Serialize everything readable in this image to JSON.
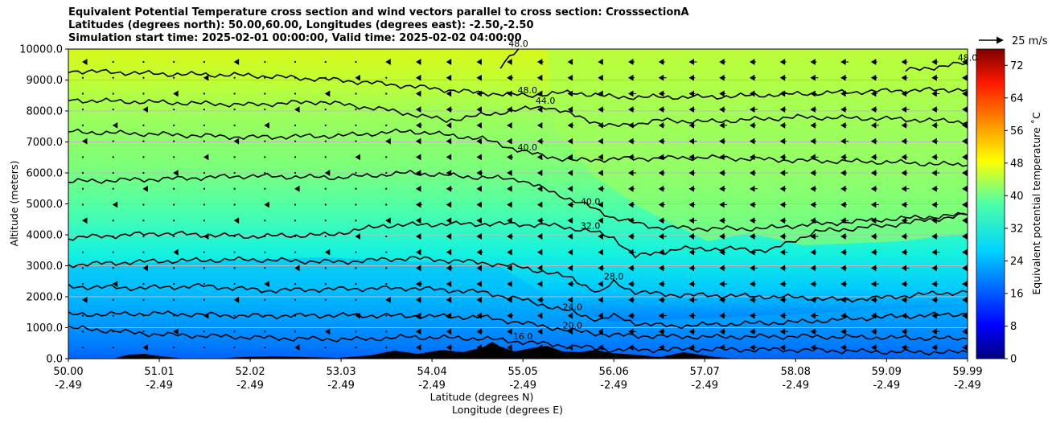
{
  "chart_data": {
    "type": "heatmap",
    "title_lines": [
      "Equivalent Potential Temperature cross section and wind vectors parallel to cross section: CrosssectionA",
      "Latitudes (degrees north): 50.00,60.00, Longitudes (degrees east): -2.50,-2.50",
      "Simulation start time: 2025-02-01 00:00:00, Valid time: 2025-02-02 04:00:00"
    ],
    "xlabel": "Latitude (degrees N)",
    "xlabel2": "Longitude (degrees E)",
    "ylabel": "Altitude (meters)",
    "xlim": [
      50.0,
      59.99
    ],
    "ylim": [
      0,
      10000
    ],
    "x_ticks": [
      {
        "lat": "50.00",
        "lon": "-2.49",
        "value": 50.0
      },
      {
        "lat": "51.01",
        "lon": "-2.49",
        "value": 51.01
      },
      {
        "lat": "52.02",
        "lon": "-2.49",
        "value": 52.02
      },
      {
        "lat": "53.03",
        "lon": "-2.49",
        "value": 53.03
      },
      {
        "lat": "54.04",
        "lon": "-2.49",
        "value": 54.04
      },
      {
        "lat": "55.05",
        "lon": "-2.49",
        "value": 55.05
      },
      {
        "lat": "56.06",
        "lon": "-2.49",
        "value": 56.06
      },
      {
        "lat": "57.07",
        "lon": "-2.49",
        "value": 57.07
      },
      {
        "lat": "58.08",
        "lon": "-2.49",
        "value": 58.08
      },
      {
        "lat": "59.09",
        "lon": "-2.49",
        "value": 59.09
      },
      {
        "lat": "59.99",
        "lon": "-2.49",
        "value": 59.99
      }
    ],
    "y_ticks": [
      {
        "label": "0.0",
        "value": 0
      },
      {
        "label": "1000.0",
        "value": 1000
      },
      {
        "label": "2000.0",
        "value": 2000
      },
      {
        "label": "3000.0",
        "value": 3000
      },
      {
        "label": "4000.0",
        "value": 4000
      },
      {
        "label": "5000.0",
        "value": 5000
      },
      {
        "label": "6000.0",
        "value": 6000
      },
      {
        "label": "7000.0",
        "value": 7000
      },
      {
        "label": "8000.0",
        "value": 8000
      },
      {
        "label": "9000.0",
        "value": 9000
      },
      {
        "label": "10000.0",
        "value": 10000
      }
    ],
    "grid": "horizontal",
    "colorbar": {
      "label": "Equivalent potential temperature ˚C",
      "range": [
        0,
        76
      ],
      "ticks": [
        "0",
        "8",
        "16",
        "24",
        "32",
        "40",
        "48",
        "56",
        "64",
        "72"
      ],
      "tick_values": [
        0,
        8,
        16,
        24,
        32,
        40,
        48,
        56,
        64,
        72
      ],
      "colormap": "jet"
    },
    "quiver_key": {
      "label": "25 m/s",
      "value": 25
    },
    "contours": [
      {
        "level": "16.0",
        "value": 16,
        "points": [
          [
            50.0,
            1000
          ],
          [
            51.0,
            780
          ],
          [
            52.5,
            650
          ],
          [
            53.2,
            620
          ],
          [
            53.8,
            700
          ],
          [
            54.6,
            650
          ],
          [
            55.05,
            540
          ],
          [
            55.6,
            400
          ],
          [
            56.06,
            280
          ],
          [
            57.1,
            300
          ],
          [
            58.1,
            280
          ],
          [
            59.09,
            220
          ],
          [
            59.99,
            200
          ]
        ]
      },
      {
        "level": "20.0",
        "value": 20,
        "points": [
          [
            50.0,
            1420
          ],
          [
            51.0,
            1460
          ],
          [
            52.0,
            1380
          ],
          [
            53.0,
            1400
          ],
          [
            53.8,
            1380
          ],
          [
            54.6,
            1340
          ],
          [
            55.05,
            1150
          ],
          [
            55.6,
            900
          ],
          [
            56.06,
            760
          ],
          [
            56.6,
            720
          ],
          [
            57.1,
            700
          ],
          [
            58.1,
            720
          ],
          [
            59.09,
            680
          ],
          [
            59.99,
            640
          ]
        ]
      },
      {
        "level": "24.0",
        "value": 24,
        "points": [
          [
            50.0,
            2330
          ],
          [
            50.8,
            2280
          ],
          [
            51.5,
            2350
          ],
          [
            52.2,
            2200
          ],
          [
            53.0,
            2250
          ],
          [
            53.8,
            2280
          ],
          [
            54.6,
            2150
          ],
          [
            55.05,
            1900
          ],
          [
            55.6,
            1500
          ],
          [
            55.9,
            1250
          ],
          [
            56.06,
            1380
          ],
          [
            56.3,
            1150
          ],
          [
            56.7,
            1050
          ],
          [
            57.1,
            1100
          ],
          [
            58.1,
            1180
          ],
          [
            59.09,
            1350
          ],
          [
            59.99,
            1450
          ]
        ]
      },
      {
        "level": "28.0",
        "value": 28,
        "points": [
          [
            50.0,
            3030
          ],
          [
            51.0,
            3150
          ],
          [
            52.0,
            3200
          ],
          [
            53.0,
            3120
          ],
          [
            53.8,
            3250
          ],
          [
            54.6,
            3100
          ],
          [
            55.05,
            2950
          ],
          [
            55.6,
            2600
          ],
          [
            55.9,
            2100
          ],
          [
            56.06,
            2480
          ],
          [
            56.3,
            2150
          ],
          [
            56.8,
            2050
          ],
          [
            57.1,
            2050
          ],
          [
            58.1,
            1980
          ],
          [
            58.6,
            1900
          ],
          [
            59.09,
            1980
          ],
          [
            59.6,
            2100
          ],
          [
            59.99,
            2150
          ]
        ]
      },
      {
        "level": "32.0",
        "value": 32,
        "points": [
          [
            50.0,
            3900
          ],
          [
            51.0,
            4050
          ],
          [
            52.0,
            3950
          ],
          [
            52.9,
            4000
          ],
          [
            53.5,
            4300
          ],
          [
            54.2,
            4350
          ],
          [
            54.9,
            4350
          ],
          [
            55.4,
            4300
          ],
          [
            55.8,
            4120
          ],
          [
            56.06,
            3900
          ],
          [
            56.3,
            3300
          ],
          [
            56.8,
            3550
          ],
          [
            57.3,
            3550
          ],
          [
            57.8,
            3500
          ],
          [
            58.3,
            4100
          ],
          [
            59.09,
            4300
          ],
          [
            59.99,
            4650
          ]
        ]
      },
      {
        "level": "40.0",
        "value": 40,
        "points": [
          [
            50.0,
            5720
          ],
          [
            51.0,
            5800
          ],
          [
            52.0,
            5900
          ],
          [
            53.0,
            5850
          ],
          [
            53.8,
            6000
          ],
          [
            54.6,
            5850
          ],
          [
            55.0,
            5800
          ],
          [
            55.4,
            5350
          ],
          [
            55.8,
            4900
          ],
          [
            56.06,
            4550
          ],
          [
            56.5,
            4250
          ],
          [
            57.1,
            4200
          ],
          [
            57.7,
            4200
          ],
          [
            58.1,
            4300
          ],
          [
            59.09,
            4500
          ],
          [
            59.99,
            4650
          ]
        ]
      },
      {
        "level": "40.0",
        "value": 40,
        "points": [
          [
            50.0,
            7330
          ],
          [
            51.0,
            7250
          ],
          [
            52.0,
            7150
          ],
          [
            53.0,
            7200
          ],
          [
            53.8,
            7350
          ],
          [
            54.6,
            7100
          ],
          [
            55.1,
            6650
          ],
          [
            55.6,
            6400
          ],
          [
            56.06,
            6450
          ],
          [
            57.1,
            6500
          ],
          [
            58.1,
            6400
          ],
          [
            59.09,
            6350
          ],
          [
            59.99,
            6250
          ]
        ]
      },
      {
        "level": "44.0",
        "value": 44,
        "points": [
          [
            50.0,
            8350
          ],
          [
            51.0,
            8280
          ],
          [
            52.0,
            8200
          ],
          [
            52.8,
            8300
          ],
          [
            53.5,
            8050
          ],
          [
            54.2,
            7700
          ],
          [
            54.8,
            7950
          ],
          [
            55.3,
            8150
          ],
          [
            55.9,
            7600
          ],
          [
            56.06,
            7500
          ],
          [
            56.6,
            7700
          ],
          [
            57.1,
            7650
          ],
          [
            58.1,
            7800
          ],
          [
            59.09,
            7750
          ],
          [
            59.99,
            7650
          ]
        ]
      },
      {
        "level": "48.0",
        "value": 48,
        "points": [
          [
            50.0,
            9300
          ],
          [
            51.0,
            9200
          ],
          [
            52.0,
            9150
          ],
          [
            53.0,
            9000
          ],
          [
            53.8,
            8800
          ],
          [
            54.5,
            8600
          ],
          [
            55.1,
            8500
          ],
          [
            55.6,
            8600
          ],
          [
            56.06,
            8450
          ],
          [
            57.1,
            8450
          ],
          [
            58.1,
            8550
          ],
          [
            59.09,
            8650
          ],
          [
            59.99,
            8700
          ]
        ]
      },
      {
        "level": "48.0",
        "value": 48,
        "points": [
          [
            54.8,
            9400
          ],
          [
            55.0,
            10000
          ]
        ]
      },
      {
        "level": "48.0",
        "value": 48,
        "points": [
          [
            59.3,
            9300
          ],
          [
            59.99,
            9550
          ]
        ]
      }
    ]
  },
  "colors": {
    "terrain": "#000000",
    "contour_line": "#000000",
    "grid": "#bdbdbd"
  }
}
